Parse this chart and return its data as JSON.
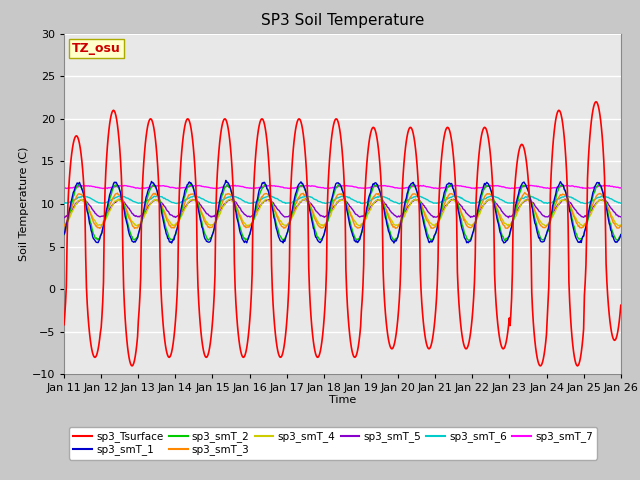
{
  "title": "SP3 Soil Temperature",
  "xlabel": "Time",
  "ylabel": "Soil Temperature (C)",
  "ylim": [
    -10,
    30
  ],
  "xlim": [
    0,
    15
  ],
  "x_tick_labels": [
    "Jan 11",
    "Jan 12",
    "Jan 13",
    "Jan 14",
    "Jan 15",
    "Jan 16",
    "Jan 17",
    "Jan 18",
    "Jan 19",
    "Jan 20",
    "Jan 21",
    "Jan 22",
    "Jan 23",
    "Jan 24",
    "Jan 25",
    "Jan 26"
  ],
  "tz_label": "TZ_osu",
  "series_colors": {
    "sp3_Tsurface": "#ff0000",
    "sp3_smT_1": "#0000cc",
    "sp3_smT_2": "#00cc00",
    "sp3_smT_3": "#ff8800",
    "sp3_smT_4": "#cccc00",
    "sp3_smT_5": "#8800cc",
    "sp3_smT_6": "#00cccc",
    "sp3_smT_7": "#ff00ff"
  },
  "legend_order": [
    "sp3_Tsurface",
    "sp3_smT_1",
    "sp3_smT_2",
    "sp3_smT_3",
    "sp3_smT_4",
    "sp3_smT_5",
    "sp3_smT_6",
    "sp3_smT_7"
  ],
  "fig_facecolor": "#c8c8c8",
  "plot_bg_color": "#e8e8e8",
  "grid_color": "#ffffff",
  "tz_box_facecolor": "#ffffcc",
  "tz_box_edgecolor": "#aaaa00",
  "tz_text_color": "#cc0000"
}
